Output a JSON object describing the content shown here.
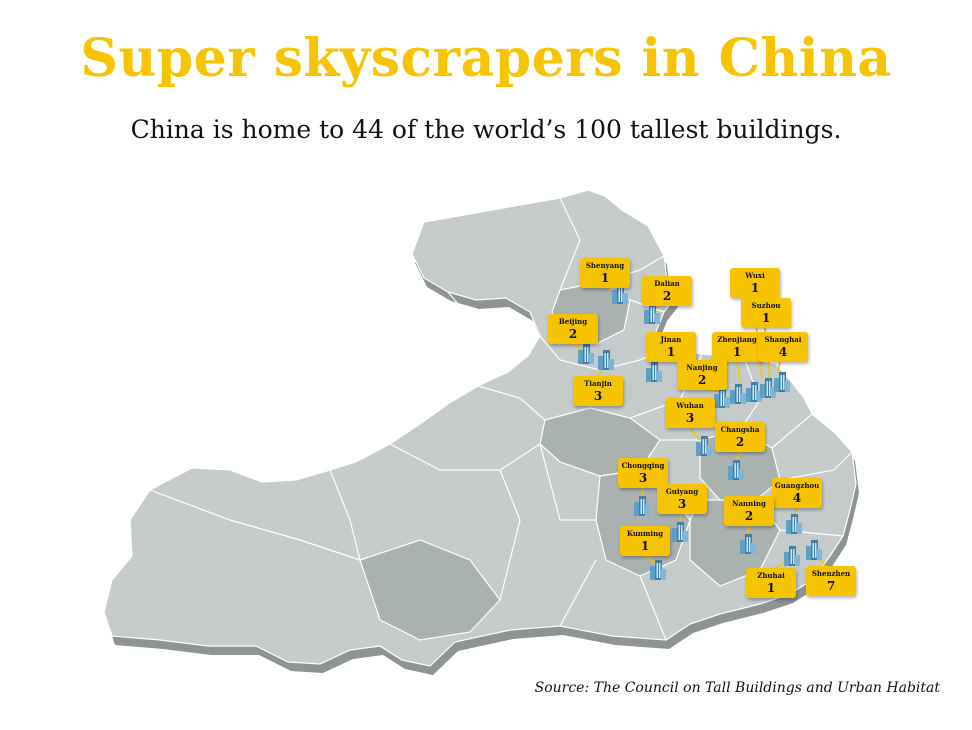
{
  "header": {
    "title": "Super skyscrapers in China",
    "subtitle": "China is home to 44 of the world’s 100 tallest buildings."
  },
  "footer": {
    "source": "Source: The Council on Tall Buildings and Urban Habitat"
  },
  "colors": {
    "accent": "#f6c400",
    "map_fill": "#c5cbcb",
    "map_shadow": "#8e9494",
    "border": "#ffffff",
    "building": "#5e9fc6"
  },
  "icons": {
    "marker": "skyscraper-icon"
  },
  "cities": [
    {
      "name": "Shenyang",
      "count": 1
    },
    {
      "name": "Dalian",
      "count": 2
    },
    {
      "name": "Beijing",
      "count": 2
    },
    {
      "name": "Tianjin",
      "count": 3
    },
    {
      "name": "Jinan",
      "count": 1
    },
    {
      "name": "Wuxi",
      "count": 1
    },
    {
      "name": "Suzhou",
      "count": 1
    },
    {
      "name": "Zhenjiang",
      "count": 1
    },
    {
      "name": "Shanghai",
      "count": 4
    },
    {
      "name": "Nanjing",
      "count": 2
    },
    {
      "name": "Wuhan",
      "count": 3
    },
    {
      "name": "Changsha",
      "count": 2
    },
    {
      "name": "Chongqing",
      "count": 3
    },
    {
      "name": "Guiyang",
      "count": 3
    },
    {
      "name": "Guangzhou",
      "count": 4
    },
    {
      "name": "Nanning",
      "count": 2
    },
    {
      "name": "Kunming",
      "count": 1
    },
    {
      "name": "Zhuhai",
      "count": 1
    },
    {
      "name": "Shenzhen",
      "count": 7
    }
  ]
}
